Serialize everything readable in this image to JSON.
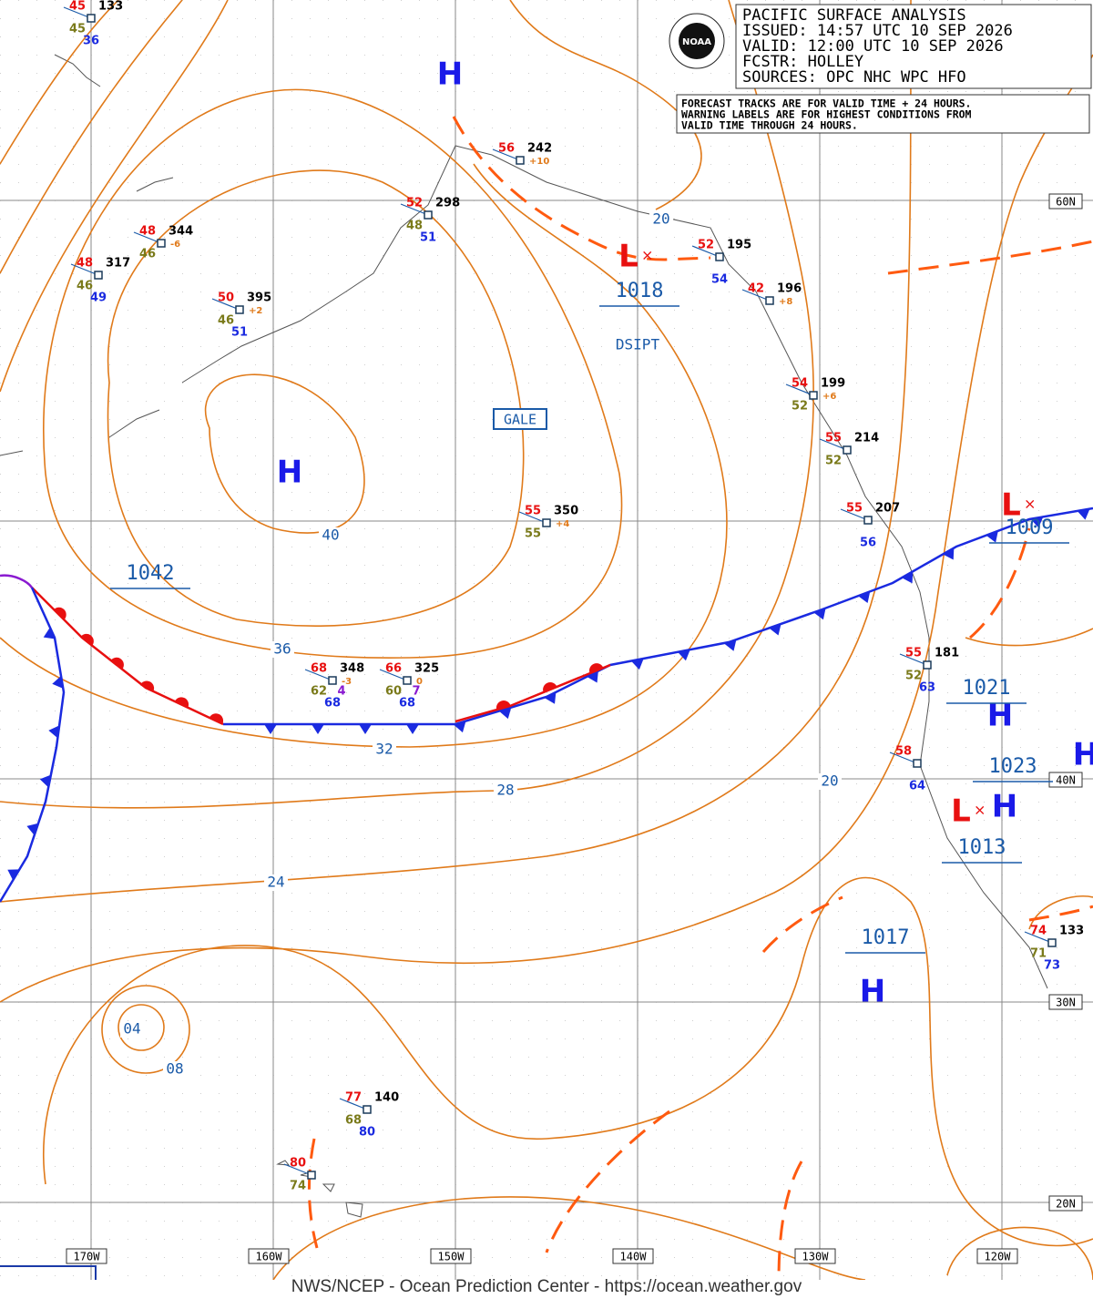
{
  "header": {
    "lines": [
      "PACIFIC SURFACE ANALYSIS",
      "ISSUED:  14:57 UTC 10 SEP 2026",
      "VALID:   12:00 UTC 10 SEP 2026",
      "FCSTR:   HOLLEY",
      "SOURCES:  OPC NHC WPC HFO"
    ]
  },
  "logo": "NOAA",
  "note": [
    "FORECAST TRACKS ARE FOR VALID TIME + 24 HOURS.",
    "WARNING LABELS ARE FOR HIGHEST CONDITIONS FROM",
    "VALID TIME THROUGH 24 HOURS."
  ],
  "annotations": [
    "GALE",
    "DSIPT"
  ],
  "longitude_labels": [
    "170W",
    "160W",
    "150W",
    "140W",
    "130W",
    "120W"
  ],
  "latitude_labels": [
    "60N",
    "40N",
    "30N",
    "20N"
  ],
  "center_symbols": [
    "H",
    "H",
    "L",
    "L",
    "H",
    "H",
    "H",
    "L",
    "H"
  ],
  "pressure_labels": [
    "1018",
    "1042",
    "1009",
    "1021",
    "1023",
    "1013",
    "1017"
  ],
  "isobar_labels": [
    "20",
    "40",
    "36",
    "32",
    "28",
    "24",
    "20",
    "08",
    "04"
  ],
  "stations": [
    {
      "temp": "45",
      "pressure": "133",
      "dew": "45",
      "sst": "36"
    },
    {
      "temp": "48",
      "pressure": "317",
      "dew": "46",
      "sst": "49"
    },
    {
      "temp": "48",
      "pressure": "344",
      "dew": "46",
      "tendency": "-6"
    },
    {
      "temp": "50",
      "pressure": "395",
      "dew": "46",
      "sst": "51",
      "tendency": "+2"
    },
    {
      "temp": "52",
      "pressure": "298",
      "dew": "48",
      "sst": "51"
    },
    {
      "temp": "56",
      "pressure": "242",
      "tendency": "+10"
    },
    {
      "temp": "52",
      "pressure": "195",
      "sst": "54"
    },
    {
      "temp": "42",
      "pressure": "196",
      "tendency": "+8"
    },
    {
      "temp": "54",
      "pressure": "199",
      "dew": "52",
      "tendency": "+6"
    },
    {
      "temp": "55",
      "pressure": "214",
      "dew": "52"
    },
    {
      "temp": "55",
      "pressure": "207",
      "sst": "56"
    },
    {
      "temp": "55",
      "pressure": "350",
      "dew": "55",
      "tendency": "+4"
    },
    {
      "temp": "68",
      "pressure": "348",
      "dew": "62",
      "other": "4",
      "sst": "68",
      "tendency": "-3"
    },
    {
      "temp": "66",
      "pressure": "325",
      "dew": "60",
      "other": "7",
      "sst": "68",
      "tendency": "0"
    },
    {
      "temp": "55",
      "pressure": "181",
      "dew": "52",
      "sst": "63"
    },
    {
      "temp": "58",
      "sst": "64"
    },
    {
      "temp": "74",
      "pressure": "133",
      "dew": "71",
      "sst": "73"
    },
    {
      "temp": "77",
      "pressure": "140",
      "dew": "68",
      "sst": "80"
    },
    {
      "temp": "80",
      "dew": "74"
    }
  ],
  "footer": "NWS/NCEP - Ocean Prediction Center - https://ocean.weather.gov"
}
